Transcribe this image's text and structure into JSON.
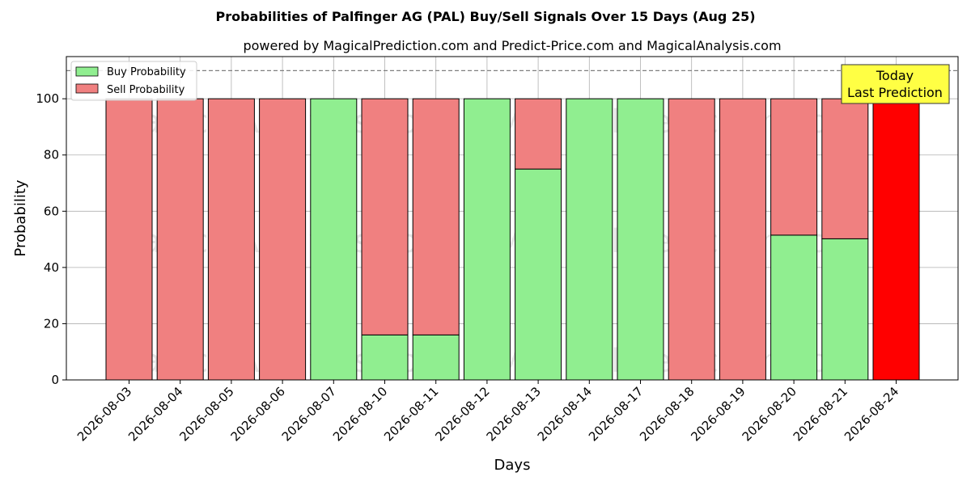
{
  "chart_data": {
    "type": "bar",
    "stacked": true,
    "title": "Probabilities of Palfinger AG (PAL) Buy/Sell Signals Over 15 Days (Aug 25)",
    "subtitle": "powered by MagicalPrediction.com and Predict-Price.com and MagicalAnalysis.com",
    "xlabel": "Days",
    "ylabel": "Probability",
    "ylim": [
      0,
      115
    ],
    "yticks": [
      0,
      20,
      40,
      60,
      80,
      100
    ],
    "grid": true,
    "legend_position": "top-left",
    "categories": [
      "2026-08-03",
      "2026-08-04",
      "2026-08-05",
      "2026-08-06",
      "2026-08-07",
      "2026-08-10",
      "2026-08-11",
      "2026-08-12",
      "2026-08-13",
      "2026-08-14",
      "2026-08-17",
      "2026-08-18",
      "2026-08-19",
      "2026-08-20",
      "2026-08-21",
      "2026-08-24"
    ],
    "series": [
      {
        "name": "Buy Probability",
        "color": "#90ee90",
        "values": [
          0,
          0,
          0,
          0,
          100,
          16,
          16,
          100,
          75,
          100,
          100,
          0,
          0,
          51.5,
          50.2,
          0
        ]
      },
      {
        "name": "Sell Probability",
        "color": "#f08080",
        "values": [
          100,
          100,
          100,
          100,
          0,
          84,
          84,
          0,
          25,
          0,
          0,
          100,
          100,
          48.5,
          49.8,
          100
        ]
      }
    ],
    "highlight": {
      "index": 15,
      "color": "#ff0000"
    },
    "reference_line": {
      "y": 110,
      "style": "dashed",
      "color": "#808080"
    },
    "annotation": {
      "lines": [
        "Today",
        "Last Prediction"
      ],
      "background": "#ffff44"
    },
    "watermarks": [
      "MagicalAnalysis.com",
      "MagicalPrediction.com"
    ]
  }
}
